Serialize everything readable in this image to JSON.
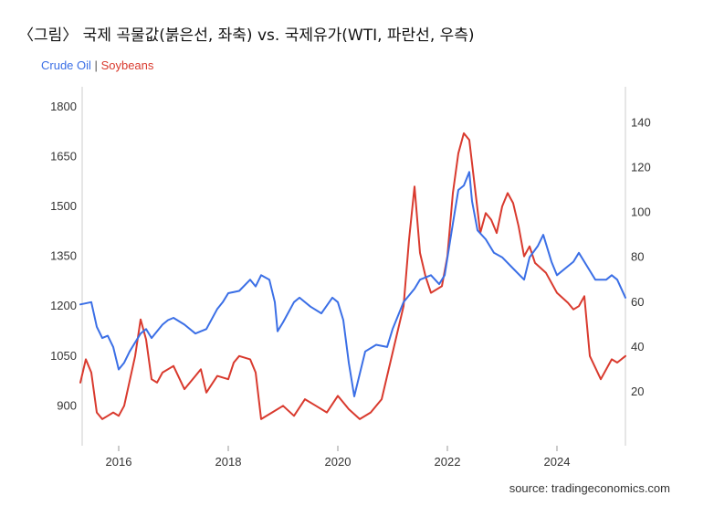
{
  "title": "〈그림〉 국제 곡물값(붉은선, 좌축) vs. 국제유가(WTI, 파란선, 우측)",
  "source": "source: tradingeconomics.com",
  "chart_data": {
    "type": "line",
    "legend": {
      "position": "top-left",
      "separator": "|"
    },
    "grid": false,
    "x_ticks": [
      "2016",
      "2018",
      "2020",
      "2022",
      "2024"
    ],
    "x_range": [
      "2015-05",
      "2025-04"
    ],
    "left_axis": {
      "ticks": [
        "900",
        "1050",
        "1200",
        "1350",
        "1500",
        "1650",
        "1800"
      ],
      "range": [
        780,
        1860
      ]
    },
    "right_axis": {
      "ticks": [
        "20",
        "40",
        "60",
        "80",
        "100",
        "120",
        "140"
      ],
      "range": [
        -4,
        156
      ]
    },
    "series": [
      {
        "name": "Crude Oil",
        "axis": "right",
        "color": "#3b6fe6",
        "x": [
          2015.3,
          2015.5,
          2015.6,
          2015.7,
          2015.8,
          2015.9,
          2016.0,
          2016.1,
          2016.2,
          2016.4,
          2016.5,
          2016.6,
          2016.8,
          2016.9,
          2017.0,
          2017.2,
          2017.4,
          2017.5,
          2017.6,
          2017.8,
          2017.9,
          2018.0,
          2018.2,
          2018.4,
          2018.5,
          2018.6,
          2018.75,
          2018.85,
          2018.9,
          2019.0,
          2019.2,
          2019.3,
          2019.5,
          2019.7,
          2019.9,
          2020.0,
          2020.1,
          2020.2,
          2020.3,
          2020.4,
          2020.5,
          2020.7,
          2020.9,
          2021.0,
          2021.2,
          2021.4,
          2021.5,
          2021.7,
          2021.85,
          2021.95,
          2022.1,
          2022.2,
          2022.3,
          2022.4,
          2022.45,
          2022.55,
          2022.7,
          2022.85,
          2023.0,
          2023.2,
          2023.4,
          2023.5,
          2023.65,
          2023.75,
          2023.9,
          2024.0,
          2024.2,
          2024.3,
          2024.4,
          2024.6,
          2024.7,
          2024.9,
          2025.0,
          2025.1,
          2025.25
        ],
        "values": [
          59,
          60,
          49,
          44,
          45,
          40,
          30,
          33,
          38,
          46,
          48,
          44,
          50,
          52,
          53,
          50,
          46,
          47,
          48,
          57,
          60,
          64,
          65,
          70,
          67,
          72,
          70,
          60,
          47,
          51,
          60,
          62,
          58,
          55,
          62,
          60,
          52,
          33,
          18,
          28,
          38,
          41,
          40,
          48,
          60,
          66,
          70,
          72,
          68,
          72,
          95,
          110,
          112,
          118,
          105,
          92,
          88,
          82,
          80,
          75,
          70,
          80,
          85,
          90,
          78,
          72,
          76,
          78,
          82,
          74,
          70,
          70,
          72,
          70,
          62
        ]
      },
      {
        "name": "Soybeans",
        "axis": "left",
        "color": "#d93a2e",
        "x": [
          2015.3,
          2015.4,
          2015.5,
          2015.6,
          2015.7,
          2015.8,
          2015.9,
          2016.0,
          2016.1,
          2016.3,
          2016.4,
          2016.5,
          2016.6,
          2016.7,
          2016.8,
          2017.0,
          2017.2,
          2017.4,
          2017.5,
          2017.6,
          2017.8,
          2018.0,
          2018.1,
          2018.2,
          2018.4,
          2018.5,
          2018.6,
          2018.8,
          2019.0,
          2019.2,
          2019.4,
          2019.6,
          2019.8,
          2020.0,
          2020.2,
          2020.4,
          2020.6,
          2020.8,
          2020.9,
          2021.0,
          2021.1,
          2021.2,
          2021.3,
          2021.4,
          2021.5,
          2021.6,
          2021.7,
          2021.9,
          2022.0,
          2022.1,
          2022.2,
          2022.3,
          2022.4,
          2022.5,
          2022.6,
          2022.7,
          2022.8,
          2022.9,
          2023.0,
          2023.1,
          2023.2,
          2023.3,
          2023.4,
          2023.5,
          2023.6,
          2023.8,
          2024.0,
          2024.2,
          2024.3,
          2024.4,
          2024.5,
          2024.6,
          2024.8,
          2025.0,
          2025.1,
          2025.25
        ],
        "values": [
          970,
          1040,
          1000,
          880,
          860,
          870,
          880,
          870,
          900,
          1050,
          1160,
          1100,
          980,
          970,
          1000,
          1020,
          950,
          990,
          1010,
          940,
          990,
          980,
          1030,
          1050,
          1040,
          1000,
          860,
          880,
          900,
          870,
          920,
          900,
          880,
          930,
          890,
          860,
          880,
          920,
          990,
          1060,
          1130,
          1200,
          1400,
          1560,
          1360,
          1290,
          1240,
          1260,
          1350,
          1540,
          1660,
          1720,
          1700,
          1560,
          1420,
          1480,
          1460,
          1420,
          1500,
          1540,
          1510,
          1440,
          1350,
          1380,
          1330,
          1300,
          1240,
          1210,
          1190,
          1200,
          1230,
          1050,
          980,
          1040,
          1030,
          1050
        ]
      }
    ]
  }
}
